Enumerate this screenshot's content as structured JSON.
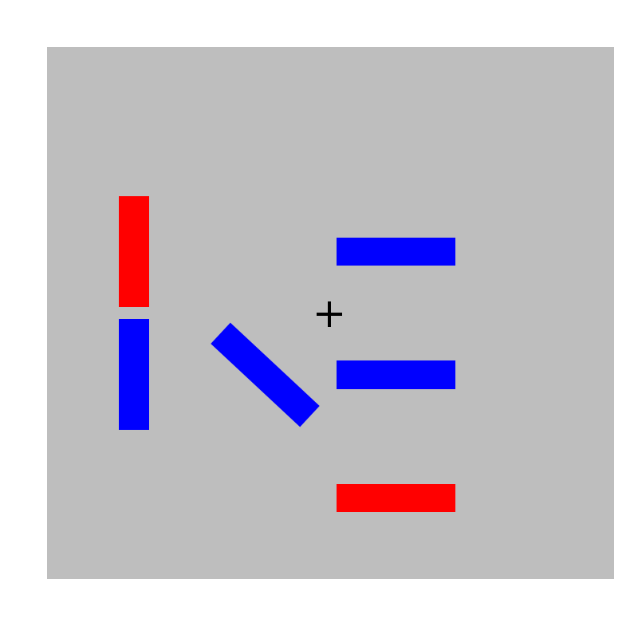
{
  "colors": {
    "page_background": "#ffffff",
    "stimulus_background": "#bebebe",
    "red": "#ff0000",
    "blue": "#0000ff",
    "fixation": "#000000"
  },
  "fixation": {
    "symbol": "+"
  },
  "bars": [
    {
      "id": "red-vertical-bar",
      "color": "red",
      "orientation": "vertical"
    },
    {
      "id": "blue-vertical-bar",
      "color": "blue",
      "orientation": "vertical"
    },
    {
      "id": "blue-diagonal-bar",
      "color": "blue",
      "orientation": "diagonal"
    },
    {
      "id": "blue-horizontal-bar-top",
      "color": "blue",
      "orientation": "horizontal"
    },
    {
      "id": "blue-horizontal-bar-middle",
      "color": "blue",
      "orientation": "horizontal"
    },
    {
      "id": "red-horizontal-bar-bottom",
      "color": "red",
      "orientation": "horizontal"
    }
  ]
}
